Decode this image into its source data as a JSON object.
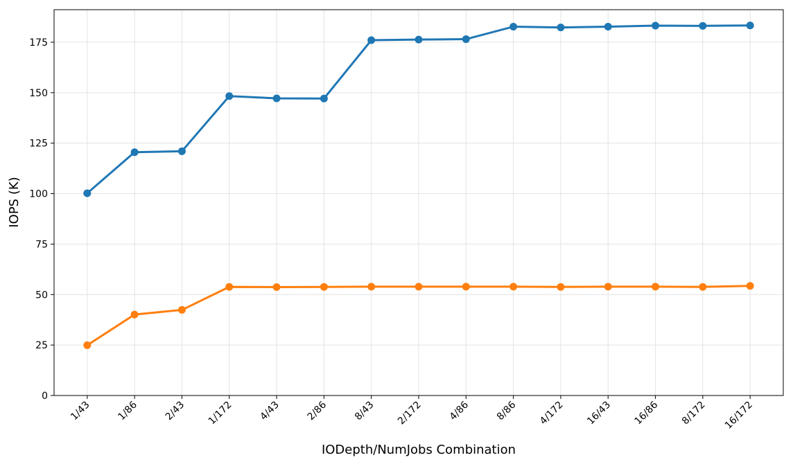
{
  "chart_data": {
    "type": "line",
    "x_label": "IODepth/NumJobs Combination",
    "y_label": "IOPS (K)",
    "categories": [
      "1/43",
      "1/86",
      "2/43",
      "1/172",
      "4/43",
      "2/86",
      "8/43",
      "2/172",
      "4/86",
      "8/86",
      "4/172",
      "16/43",
      "16/86",
      "8/172",
      "16/172"
    ],
    "series": [
      {
        "color": "#1f77b4",
        "values": [
          100.2,
          120.5,
          121,
          148.3,
          147.2,
          147.1,
          176,
          176.3,
          176.5,
          182.7,
          182.3,
          182.7,
          183.2,
          183.1,
          183.3
        ]
      },
      {
        "color": "#ff7f0e",
        "values": [
          24.9,
          40.1,
          42.4,
          53.8,
          53.7,
          53.8,
          53.9,
          53.9,
          53.9,
          53.9,
          53.8,
          53.9,
          53.9,
          53.8,
          54.3
        ]
      }
    ],
    "ylim": [
      0,
      191.1
    ],
    "yticks": [
      0,
      25,
      50,
      75,
      100,
      125,
      150,
      175
    ],
    "grid": true
  }
}
